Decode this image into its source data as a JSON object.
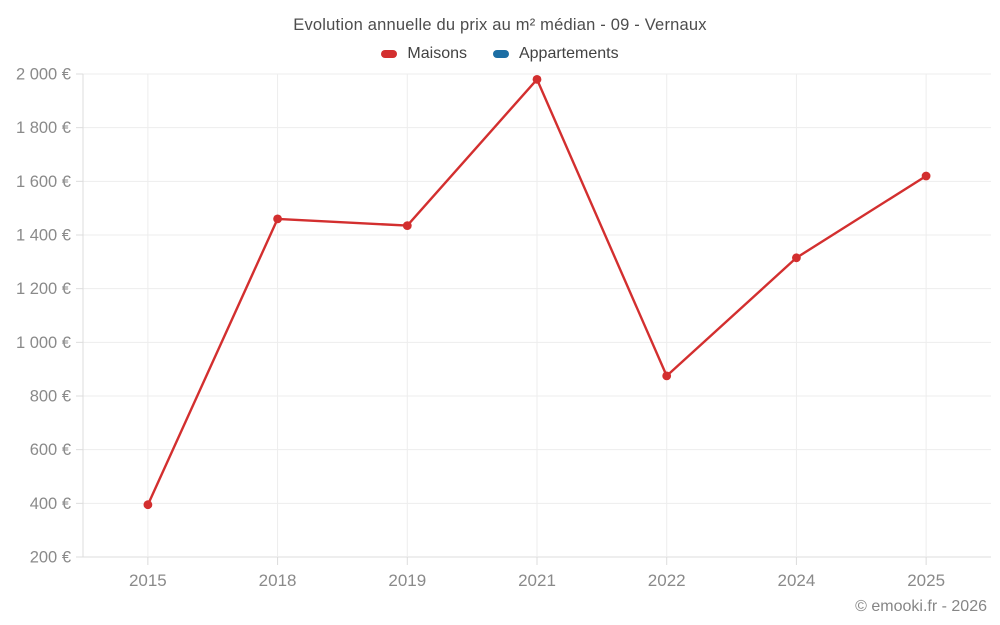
{
  "footer": {
    "credit": "© emooki.fr - 2026"
  },
  "chart_data": {
    "type": "line",
    "title": "Evolution annuelle du prix au m² médian - 09 - Vernaux",
    "categories": [
      "2015",
      "2018",
      "2019",
      "2021",
      "2022",
      "2024",
      "2025"
    ],
    "series": [
      {
        "name": "Maisons",
        "color": "#d32f2f",
        "values": [
          395,
          1460,
          1435,
          1980,
          875,
          1315,
          1620
        ]
      },
      {
        "name": "Appartements",
        "color": "#1c6ea4",
        "values": []
      }
    ],
    "xlabel": "",
    "ylabel": "",
    "ylim": [
      200,
      2000
    ],
    "y_tick_step": 200,
    "y_ticks": [
      {
        "value": 2000,
        "label": "2 000 €"
      },
      {
        "value": 1800,
        "label": "1 800 €"
      },
      {
        "value": 1600,
        "label": "1 600 €"
      },
      {
        "value": 1400,
        "label": "1 400 €"
      },
      {
        "value": 1200,
        "label": "1 200 €"
      },
      {
        "value": 1000,
        "label": "1 000 €"
      },
      {
        "value": 800,
        "label": "800 €"
      },
      {
        "value": 600,
        "label": "600 €"
      },
      {
        "value": 400,
        "label": "400 €"
      },
      {
        "value": 200,
        "label": "200 €"
      }
    ],
    "grid": true,
    "legend_position": "top",
    "unit": "€"
  },
  "colors": {
    "grid_line": "#ededed",
    "axis_line": "#dcdcdc",
    "tick_text": "#8a8a8a",
    "title_text": "#4d4d4d",
    "legend_text": "#424242",
    "footer_text": "#868686",
    "background": "#ffffff"
  }
}
